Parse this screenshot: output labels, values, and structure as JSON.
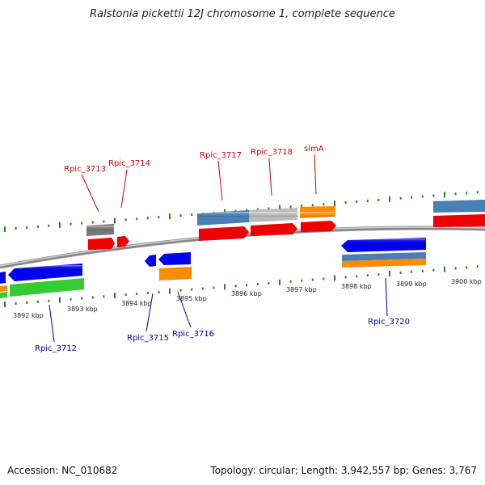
{
  "title": "Ralstonia pickettii 12J chromosome 1, complete sequence",
  "footer": {
    "accession": "Accession: NC_010682",
    "summary": "Topology: circular; Length: 3,942,557 bp; Genes: 3,767"
  },
  "scale_labels": [
    "3892 kbp",
    "3893 kbp",
    "3894 kbp",
    "3895 kbp",
    "3896 kbp",
    "3897 kbp",
    "3898 kbp",
    "3899 kbp",
    "3900 kbp"
  ],
  "top_labels": [
    "Rpic_3713",
    "Rpic_3714",
    "Rpic_3717",
    "Rpic_3718",
    "slmA"
  ],
  "bottom_labels": [
    "Rpic_3712",
    "Rpic_3715",
    "Rpic_3716",
    "Rpic_3720"
  ],
  "colors": {
    "red": "#ee0000",
    "blue": "#0000ee",
    "orange": "#ff8c00",
    "green": "#33cc33",
    "steel": "#4a7fb5",
    "gray": "#777777",
    "lightgray": "#bbbbbb",
    "tick": "#2e7d1e",
    "backbone": "#888888"
  }
}
